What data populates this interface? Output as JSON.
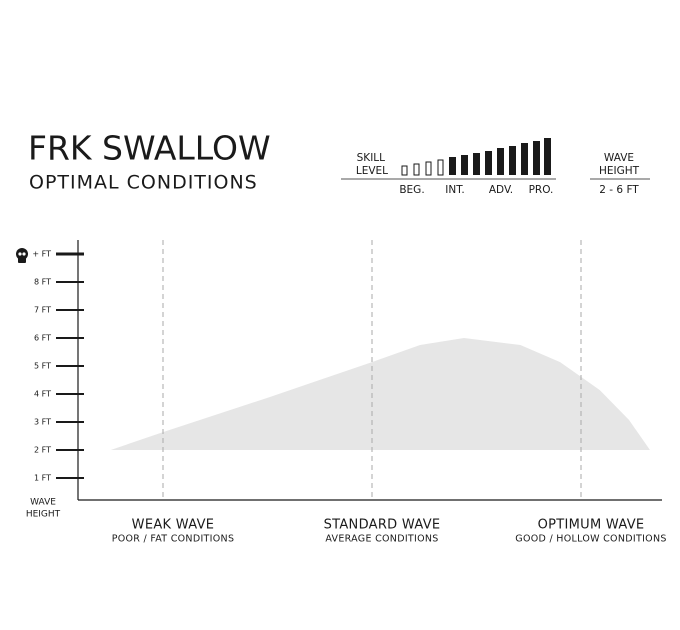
{
  "chart_data": {
    "type": "area",
    "title": "FRK SWALLOW",
    "subtitle": "OPTIMAL CONDITIONS",
    "skill_label": [
      "SKILL",
      "LEVEL"
    ],
    "skill_levels": [
      "BEG.",
      "INT.",
      "ADV.",
      "PRO."
    ],
    "wave_height_label": [
      "WAVE",
      "HEIGHT"
    ],
    "wave_height_range": "2 - 6 FT",
    "y_label": [
      "WAVE",
      "HEIGHT"
    ],
    "xlim": [
      -0.4,
      2.4
    ],
    "ylim": [
      0,
      9.5
    ],
    "xticks": [
      0,
      1,
      2
    ],
    "categories": [
      "WEAK WAVE",
      "STANDARD WAVE",
      "OPTIMUM WAVE"
    ],
    "category_notes": [
      "POOR / FAT CONDITIONS",
      "AVERAGE CONDITIONS",
      "GOOD / HOLLOW CONDITIONS"
    ],
    "yticks": [
      {
        "value": 1,
        "label": "1 FT"
      },
      {
        "value": 2,
        "label": "2 FT"
      },
      {
        "value": 3,
        "label": "3 FT"
      },
      {
        "value": 4,
        "label": "4 FT"
      },
      {
        "value": 5,
        "label": "5 FT"
      },
      {
        "value": 6,
        "label": "6 FT"
      },
      {
        "value": 7,
        "label": "7 FT"
      },
      {
        "value": 8,
        "label": "8 FT"
      },
      {
        "value": 9,
        "label": "+ FT"
      }
    ],
    "baseline": 2,
    "x": [
      -0.25,
      0,
      0.51,
      1,
      1.23,
      1.44,
      1.71,
      1.9,
      2.09,
      2.23,
      2.33
    ],
    "values": [
      2,
      2.64,
      3.89,
      5.14,
      5.75,
      6.0,
      5.75,
      5.14,
      4.14,
      3.07,
      2
    ],
    "color": "#e6e6e6"
  }
}
